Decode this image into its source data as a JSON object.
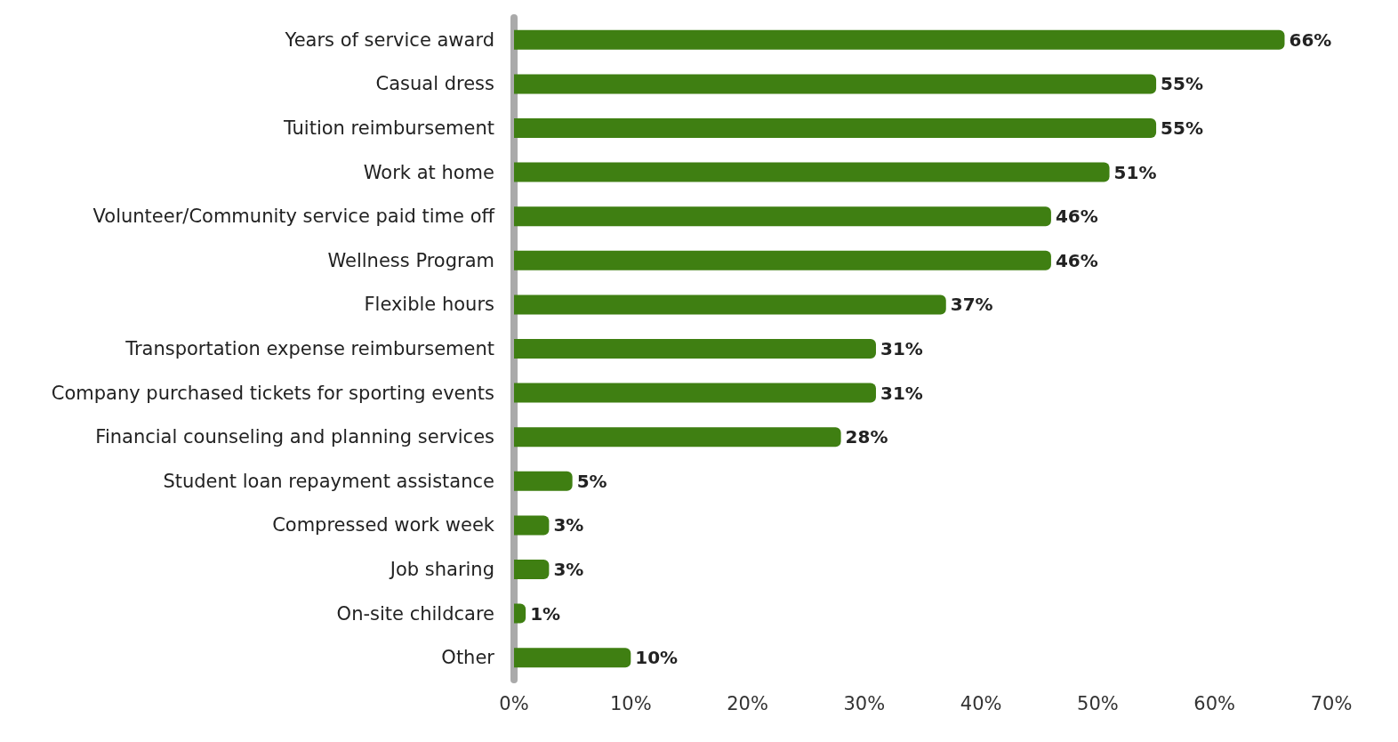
{
  "chart_data": {
    "type": "bar",
    "orientation": "horizontal",
    "categories": [
      "Years of service award",
      "Casual dress",
      "Tuition reimbursement",
      "Work at home",
      "Volunteer/Community service paid time off",
      "Wellness Program",
      "Flexible hours",
      "Transportation expense reimbursement",
      "Company purchased tickets for sporting events",
      "Financial counseling and planning services",
      "Student loan repayment assistance",
      "Compressed work week",
      "Job sharing",
      "On-site childcare",
      "Other"
    ],
    "values": [
      66,
      55,
      55,
      51,
      46,
      46,
      37,
      31,
      31,
      28,
      5,
      3,
      3,
      1,
      10
    ],
    "value_labels": [
      "66%",
      "55%",
      "55%",
      "51%",
      "46%",
      "46%",
      "37%",
      "31%",
      "31%",
      "28%",
      "5%",
      "3%",
      "3%",
      "1%",
      "10%"
    ],
    "color": "#3f7f12",
    "xlim": [
      0,
      70
    ],
    "xticks": [
      {
        "value": 0,
        "label": "0%"
      },
      {
        "value": 10,
        "label": "10%"
      },
      {
        "value": 20,
        "label": "20%"
      },
      {
        "value": 30,
        "label": "30%"
      },
      {
        "value": 40,
        "label": "40%"
      },
      {
        "value": 50,
        "label": "50%"
      },
      {
        "value": 60,
        "label": "60%"
      },
      {
        "value": 70,
        "label": "70%"
      }
    ],
    "grid": false
  }
}
